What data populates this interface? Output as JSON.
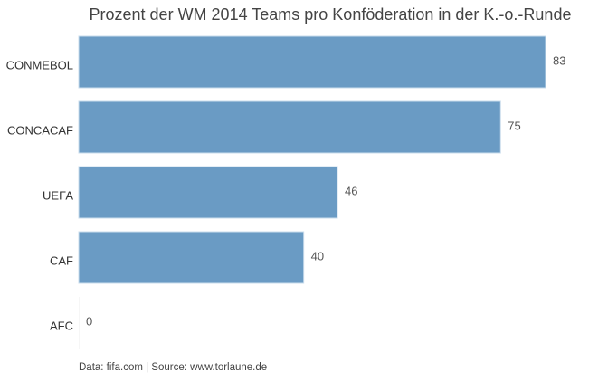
{
  "chart_data": {
    "type": "bar",
    "orientation": "horizontal",
    "title": "Prozent der WM 2014 Teams pro Konföderation in der K.-o.-Runde",
    "categories": [
      "CONMEBOL",
      "CONCACAF",
      "UEFA",
      "CAF",
      "AFC"
    ],
    "values": [
      83,
      75,
      46,
      40,
      0
    ],
    "xlim": [
      0,
      90
    ],
    "grid": false,
    "bar_color": "#6a9bc4",
    "xlabel": "",
    "ylabel": ""
  },
  "footnote": "Data: fifa.com | Source: www.torlaune.de"
}
